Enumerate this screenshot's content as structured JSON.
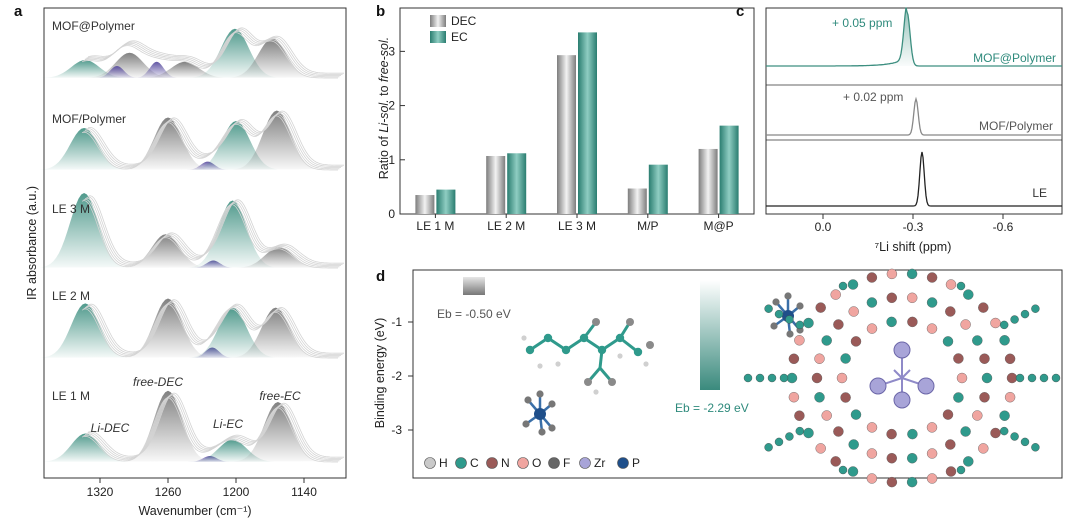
{
  "colors": {
    "teal": "#3d8f80",
    "gray": "#8a8a8a",
    "purple": "#6b5fa8",
    "dark": "#333333"
  },
  "panel_a": {
    "label": "a",
    "ylabel": "IR absorbance (a.u.)",
    "xlabel": "Wavenumber (cm⁻¹)",
    "xticks": [
      "1320",
      "1260",
      "1200",
      "1140"
    ],
    "samples": [
      "MOF@Polymer",
      "MOF/Polymer",
      "LE 3 M",
      "LE 2 M",
      "LE 1 M"
    ],
    "peak_labels": [
      "Li-DEC",
      "free-DEC",
      "Li-EC",
      "free-EC"
    ]
  },
  "panel_b": {
    "label": "b"
  },
  "panel_c": {
    "label": "c",
    "xlabel": "⁷Li shift (ppm)",
    "xticks": [
      "0.0",
      "-0.3",
      "-0.6"
    ],
    "traces": [
      "MOF@Polymer",
      "MOF/Polymer",
      "LE"
    ],
    "annotations": [
      "+ 0.05 ppm",
      "+ 0.02 ppm"
    ]
  },
  "panel_d": {
    "label": "d",
    "ylabel": "Binding energy (eV)",
    "yticks": [
      "-1",
      "-2",
      "-3"
    ],
    "eb_values": [
      "Eb = -0.50 eV",
      "Eb = -2.29 eV"
    ],
    "legend": [
      {
        "symbol": "H",
        "color": "#c9c9c9"
      },
      {
        "symbol": "C",
        "color": "#2f9a8c"
      },
      {
        "symbol": "N",
        "color": "#9a5a58"
      },
      {
        "symbol": "O",
        "color": "#f0a5a0"
      },
      {
        "symbol": "F",
        "color": "#666666"
      },
      {
        "symbol": "Zr",
        "color": "#a8a4d8"
      },
      {
        "symbol": "P",
        "color": "#1f4f8a"
      }
    ]
  },
  "chart_data": [
    {
      "type": "area",
      "title": "",
      "xlabel": "Wavenumber (cm⁻¹)",
      "ylabel": "IR absorbance (a.u.)",
      "xlim": [
        1350,
        1115
      ],
      "x_reversed": true,
      "series": [
        {
          "name": "MOF@Polymer",
          "peaks": [
            {
              "center": 1333,
              "height": 0.3
            },
            {
              "center": 1294,
              "height": 0.42
            },
            {
              "center": 1305,
              "height": 0.2
            },
            {
              "center": 1270,
              "height": 0.27
            },
            {
              "center": 1245,
              "height": 0.27
            },
            {
              "center": 1201,
              "height": 0.82
            },
            {
              "center": 1168,
              "height": 0.66
            }
          ]
        },
        {
          "name": "MOF/Polymer",
          "peaks": [
            {
              "center": 1334,
              "height": 0.6
            },
            {
              "center": 1260,
              "height": 0.75
            },
            {
              "center": 1225,
              "height": 0.12
            },
            {
              "center": 1200,
              "height": 0.7
            },
            {
              "center": 1164,
              "height": 0.85
            }
          ]
        },
        {
          "name": "LE 3 M",
          "peaks": [
            {
              "center": 1334,
              "height": 1.0
            },
            {
              "center": 1262,
              "height": 0.45
            },
            {
              "center": 1220,
              "height": 0.1
            },
            {
              "center": 1203,
              "height": 0.9
            },
            {
              "center": 1162,
              "height": 0.28
            }
          ]
        },
        {
          "name": "LE 2 M",
          "peaks": [
            {
              "center": 1333,
              "height": 0.78
            },
            {
              "center": 1260,
              "height": 0.85
            },
            {
              "center": 1221,
              "height": 0.15
            },
            {
              "center": 1203,
              "height": 0.72
            },
            {
              "center": 1165,
              "height": 0.72
            }
          ]
        },
        {
          "name": "LE 1 M",
          "peaks": [
            {
              "center": 1333,
              "height": 0.38
            },
            {
              "center": 1260,
              "height": 0.95
            },
            {
              "center": 1223,
              "height": 0.08
            },
            {
              "center": 1203,
              "height": 0.3
            },
            {
              "center": 1163,
              "height": 0.8
            }
          ]
        }
      ]
    },
    {
      "type": "bar",
      "title": "",
      "xlabel": "",
      "ylabel": "Ratio of Li-sol. to free-sol.",
      "ylim": [
        0,
        3.8
      ],
      "yticks": [
        0,
        1,
        2,
        3
      ],
      "categories": [
        "LE 1 M",
        "LE 2 M",
        "LE 3 M",
        "M/P",
        "M@P"
      ],
      "series": [
        {
          "name": "DEC",
          "values": [
            0.35,
            1.07,
            2.93,
            0.47,
            1.2
          ]
        },
        {
          "name": "EC",
          "values": [
            0.45,
            1.12,
            3.35,
            0.91,
            1.63
          ]
        }
      ],
      "legend": "top-left"
    },
    {
      "type": "line",
      "title": "",
      "xlabel": "⁷Li shift (ppm)",
      "ylabel": "",
      "xlim": [
        0.2,
        -0.8
      ],
      "x_reversed": true,
      "series": [
        {
          "name": "MOF@Polymer",
          "peak_ppm": -0.28
        },
        {
          "name": "MOF/Polymer",
          "peak_ppm": -0.31
        },
        {
          "name": "LE",
          "peak_ppm": -0.33
        }
      ]
    }
  ]
}
